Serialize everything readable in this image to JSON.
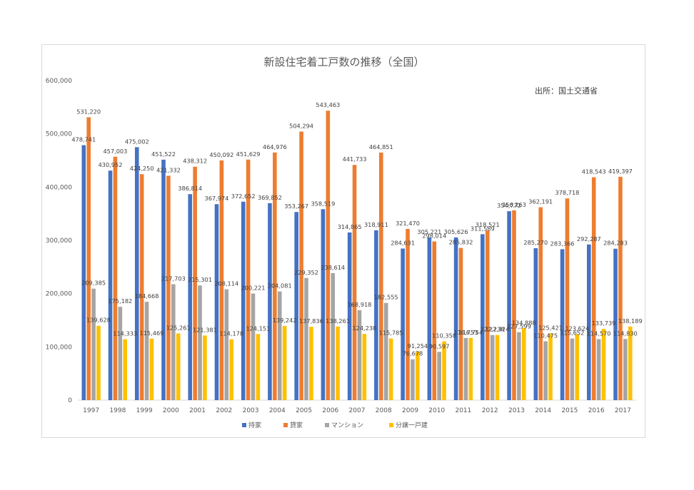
{
  "chart_data": {
    "type": "bar",
    "title": "新設住宅着工戸数の推移（全国）",
    "source_note": "出所：国土交通省",
    "xlabel": "",
    "ylabel": "",
    "ylim": [
      0,
      600000
    ],
    "yticks": [
      0,
      100000,
      200000,
      300000,
      400000,
      500000,
      600000
    ],
    "ytick_labels": [
      "0",
      "100,000",
      "200,000",
      "300,000",
      "400,000",
      "500,000",
      "600,000"
    ],
    "grid": false,
    "legend_position": "bottom",
    "categories": [
      "1997",
      "1998",
      "1999",
      "2000",
      "2001",
      "2002",
      "2003",
      "2004",
      "2005",
      "2006",
      "2007",
      "2008",
      "2009",
      "2010",
      "2011",
      "2012",
      "2013",
      "2014",
      "2015",
      "2016",
      "2017"
    ],
    "series": [
      {
        "name": "持家",
        "color": "#4472c4",
        "values": [
          478741,
          430952,
          475002,
          451522,
          386814,
          367974,
          372652,
          369852,
          353267,
          358519,
          314865,
          318911,
          284631,
          305221,
          305626,
          311589,
          354772,
          285270,
          283366,
          292287,
          284283
        ],
        "labels": [
          "478,741",
          "430,952",
          "475,002",
          "451,522",
          "386,814",
          "367,974",
          "372,652",
          "369,852",
          "353,267",
          "358,519",
          "314,865",
          "318,911",
          "284,631",
          "305,221",
          "305,626",
          "311,589",
          "354,772",
          "285,270",
          "283,366",
          "292,287",
          "284,283"
        ]
      },
      {
        "name": "貸家",
        "color": "#ed7d31",
        "values": [
          531220,
          457003,
          424250,
          421332,
          438312,
          450092,
          451629,
          464976,
          504294,
          543463,
          441733,
          464851,
          321470,
          298014,
          285832,
          318521,
          356263,
          362191,
          378718,
          418543,
          419397
        ],
        "labels": [
          "531,220",
          "457,003",
          "424,250",
          "421,332",
          "438,312",
          "450,092",
          "451,629",
          "464,976",
          "504,294",
          "543,463",
          "441,733",
          "464,851",
          "321,470",
          "298,014",
          "285,832",
          "318,521",
          "356,263",
          "362,191",
          "378,718",
          "418,543",
          "419,397"
        ]
      },
      {
        "name": "マンション",
        "color": "#a5a5a5",
        "values": [
          209385,
          175182,
          184668,
          217703,
          215301,
          208114,
          200221,
          204081,
          229352,
          238614,
          168918,
          182555,
          76678,
          90597,
          116753,
          122238,
          127599,
          110475,
          115652,
          114570,
          114830
        ],
        "labels": [
          "209,385",
          "175,182",
          "184,668",
          "217,703",
          "215,301",
          "208,114",
          "200,221",
          "204,081",
          "229,352",
          "238,614",
          "168,918",
          "182,555",
          "76,678",
          "90,597",
          "116,753",
          "122,238",
          "127,599",
          "110,475",
          "115,652",
          "114,570",
          "114,830"
        ]
      },
      {
        "name": "分譲一戸建",
        "color": "#ffc000",
        "values": [
          139628,
          114333,
          115469,
          125261,
          121381,
          114178,
          124151,
          139242,
          137836,
          138261,
          124238,
          115785,
          91254,
          110358,
          116754,
          122324,
          134888,
          125421,
          123624,
          133739,
          138189
        ],
        "labels": [
          "139,628",
          "114,333",
          "115,469",
          "125,261",
          "121,381",
          "114,178",
          "124,151",
          "139,242",
          "137,836",
          "138,261",
          "124,238",
          "115,785",
          "91,254",
          "110,358",
          "116,754",
          "122,324",
          "134,888",
          "125,421",
          "123,624",
          "133,739",
          "138,189"
        ]
      }
    ]
  }
}
